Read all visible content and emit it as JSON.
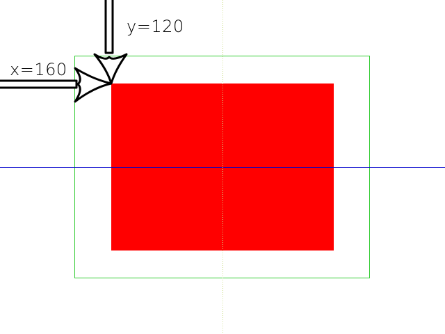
{
  "annotations": {
    "x_label": "x=160",
    "y_label": "y=120"
  },
  "colors": {
    "background": "#ffffff",
    "rectangle_fill": "#ff0000",
    "outline_stroke": "#33cc33",
    "horizontal_guide": "#0000cc",
    "vertical_guide": "#ccdd88",
    "arrow_stroke": "#000000",
    "arrow_fill": "#ffffff"
  },
  "icons": {
    "horizontal_arrow": "arrow-right-icon",
    "vertical_arrow": "arrow-down-icon"
  }
}
